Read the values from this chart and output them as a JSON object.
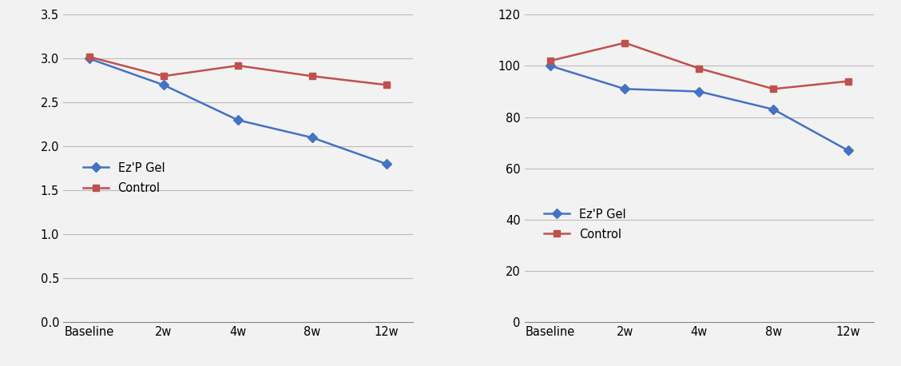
{
  "left_chart": {
    "x_labels": [
      "Baseline",
      "2w",
      "4w",
      "8w",
      "12w"
    ],
    "ezp_gel": [
      3.0,
      2.7,
      2.3,
      2.1,
      1.8
    ],
    "control": [
      3.02,
      2.8,
      2.92,
      2.8,
      2.7
    ],
    "ylim": [
      0.0,
      3.5
    ],
    "yticks": [
      0.0,
      0.5,
      1.0,
      1.5,
      2.0,
      2.5,
      3.0,
      3.5
    ]
  },
  "right_chart": {
    "x_labels": [
      "Baseline",
      "2w",
      "4w",
      "8w",
      "12w"
    ],
    "ezp_gel": [
      100,
      91,
      90,
      83,
      67
    ],
    "control": [
      102,
      109,
      99,
      91,
      94
    ],
    "ylim": [
      0,
      120
    ],
    "yticks": [
      0,
      20,
      40,
      60,
      80,
      100,
      120
    ]
  },
  "ezp_color": "#4472C4",
  "control_color": "#C0504D",
  "ezp_label": "Ez'P Gel",
  "control_label": "Control",
  "grid_color": "#BBBBBB",
  "line_width": 1.8,
  "marker_size": 6,
  "bg_color": "#F2F2F2"
}
